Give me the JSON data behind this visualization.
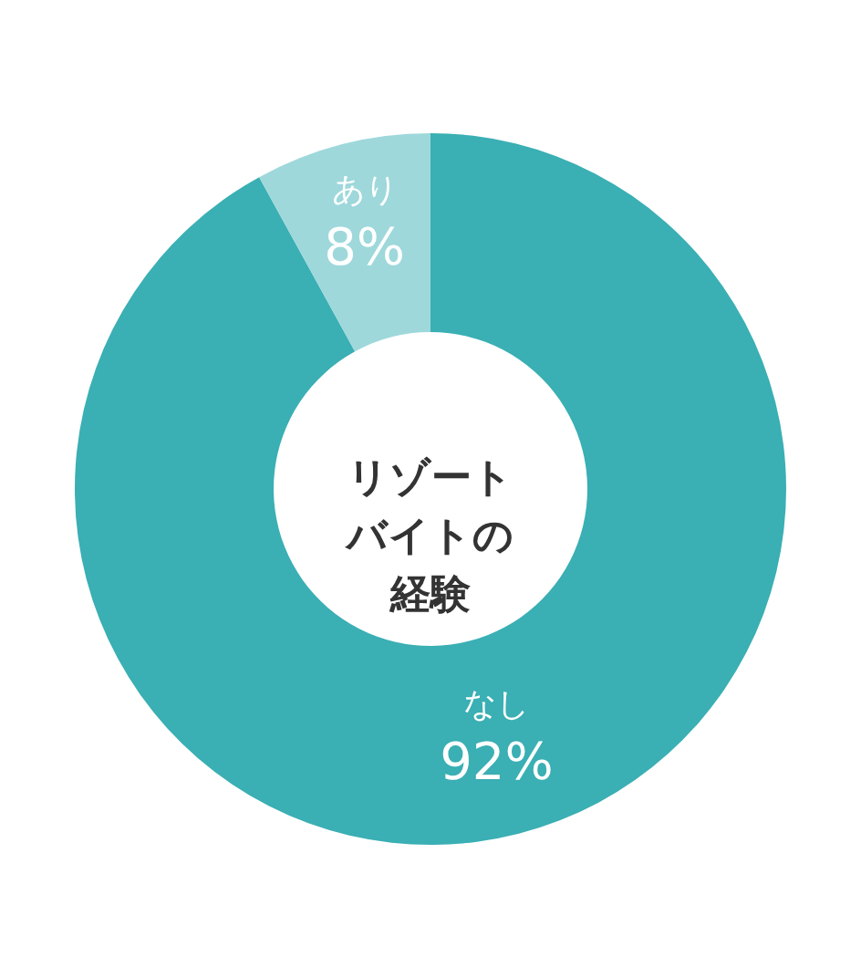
{
  "chart_data": {
    "type": "donut",
    "title": "リゾートバイトの経験",
    "categories": [
      "なし",
      "あり"
    ],
    "values": [
      92,
      8
    ],
    "colors": [
      "#3aafb4",
      "#9ed8db"
    ],
    "value_labels": [
      "92%",
      "8%"
    ]
  }
}
